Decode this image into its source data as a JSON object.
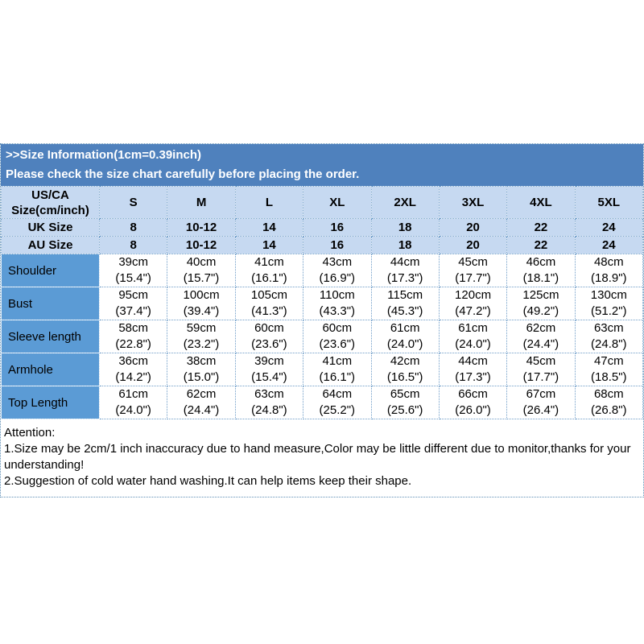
{
  "banner": {
    "line1": ">>Size Information(1cm=0.39inch)",
    "line2": "Please check the size chart carefully before placing the order."
  },
  "table": {
    "corner_label": "US/CA\nSize(cm/inch)",
    "size_headers": [
      "S",
      "M",
      "L",
      "XL",
      "2XL",
      "3XL",
      "4XL",
      "5XL"
    ],
    "conversion_rows": [
      {
        "label": "UK Size",
        "values": [
          "8",
          "10-12",
          "14",
          "16",
          "18",
          "20",
          "22",
          "24"
        ]
      },
      {
        "label": "AU Size",
        "values": [
          "8",
          "10-12",
          "14",
          "16",
          "18",
          "20",
          "22",
          "24"
        ]
      }
    ],
    "measurement_rows": [
      {
        "label": "Shoulder",
        "values": [
          "39cm\n(15.4\")",
          "40cm\n(15.7\")",
          "41cm\n(16.1\")",
          "43cm\n(16.9\")",
          "44cm\n(17.3\")",
          "45cm\n(17.7\")",
          "46cm\n(18.1\")",
          "48cm\n(18.9\")"
        ]
      },
      {
        "label": "Bust",
        "values": [
          "95cm\n(37.4\")",
          "100cm\n(39.4\")",
          "105cm\n(41.3\")",
          "110cm\n(43.3\")",
          "115cm\n(45.3\")",
          "120cm\n(47.2\")",
          "125cm\n(49.2\")",
          "130cm\n(51.2\")"
        ]
      },
      {
        "label": "Sleeve length",
        "values": [
          "58cm\n(22.8\")",
          "59cm\n(23.2\")",
          "60cm\n(23.6\")",
          "60cm\n(23.6\")",
          "61cm\n(24.0\")",
          "61cm\n(24.0\")",
          "62cm\n(24.4\")",
          "63cm\n(24.8\")"
        ]
      },
      {
        "label": "Armhole",
        "values": [
          "36cm\n(14.2\")",
          "38cm\n(15.0\")",
          "39cm\n(15.4\")",
          "41cm\n(16.1\")",
          "42cm\n(16.5\")",
          "44cm\n(17.3\")",
          "45cm\n(17.7\")",
          "47cm\n(18.5\")"
        ]
      },
      {
        "label": "Top Length",
        "values": [
          "61cm\n(24.0\")",
          "62cm\n(24.4\")",
          "63cm\n(24.8\")",
          "64cm\n(25.2\")",
          "65cm\n(25.6\")",
          "66cm\n(26.0\")",
          "67cm\n(26.4\")",
          "68cm\n(26.8\")"
        ]
      }
    ]
  },
  "attention": {
    "title": "Attention:",
    "note1": "1.Size may be 2cm/1 inch inaccuracy due to hand measure,Color may be little different due to monitor,thanks for your understanding!",
    "note2": "2.Suggestion of cold water hand washing.It can help items keep their shape."
  },
  "colors": {
    "banner_blue": "#4f81bd",
    "header_cell_blue": "#c6d9f1",
    "label_column_blue": "#5b9bd5",
    "grid_border_blue": "#6f9dc8",
    "text_black": "#000000",
    "banner_text_white": "#ffffff"
  }
}
